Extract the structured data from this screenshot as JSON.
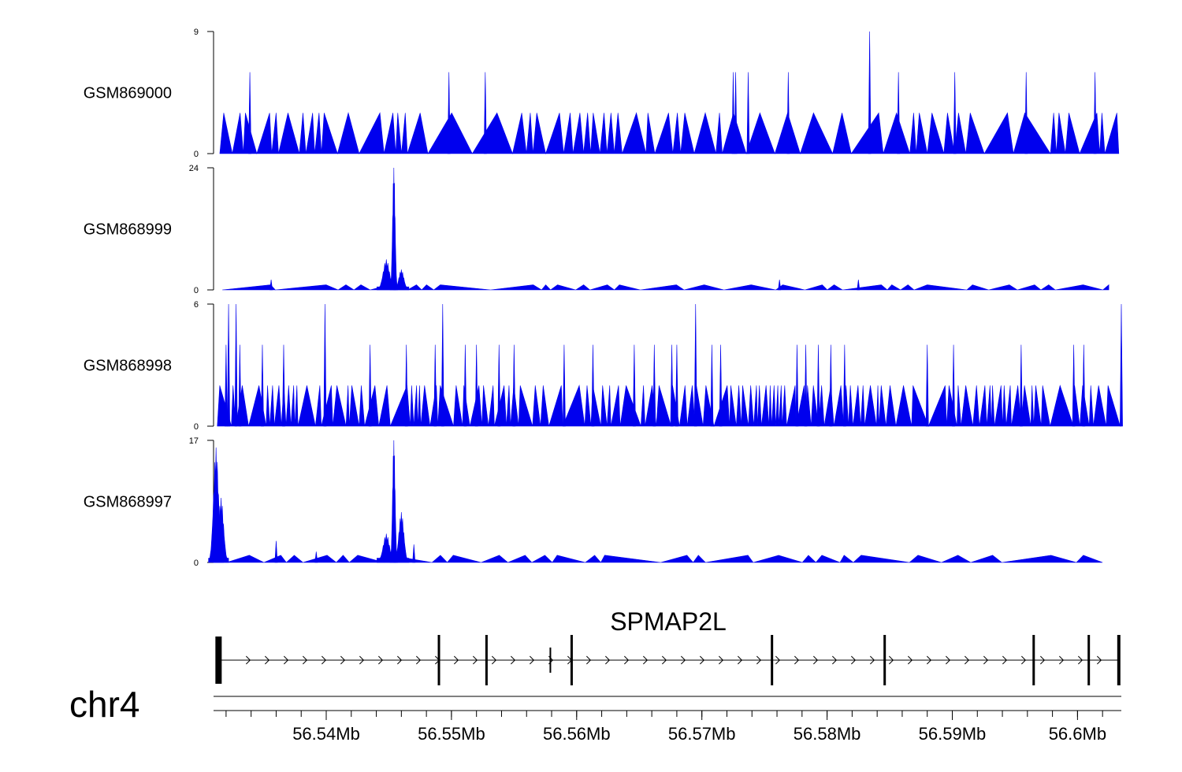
{
  "chart_data": {
    "type": "area",
    "chromosome": "chr4",
    "x_range_mb": [
      56.531,
      56.6035
    ],
    "x_ticks_mb": [
      56.54,
      56.55,
      56.56,
      56.57,
      56.58,
      56.59,
      56.6
    ],
    "x_tick_labels": [
      "56.54Mb",
      "56.55Mb",
      "56.56Mb",
      "56.57Mb",
      "56.58Mb",
      "56.59Mb",
      "56.6Mb"
    ],
    "color": "#0000ee",
    "tracks": [
      {
        "name": "GSM869000",
        "ymin": 0,
        "ymax": 9,
        "ymin_label": "0",
        "ymax_label": "9",
        "x_start": 56.5315,
        "x_end": 56.6033,
        "baseline": 3,
        "gaps": [
          0.6,
          1.5
        ],
        "small_peaks": [
          [
            56.5339,
            6
          ],
          [
            56.5498,
            6
          ],
          [
            56.5527,
            6
          ],
          [
            56.5725,
            6
          ],
          [
            56.5727,
            6
          ],
          [
            56.5737,
            6
          ],
          [
            56.5769,
            6
          ],
          [
            56.5834,
            9
          ],
          [
            56.5857,
            6
          ],
          [
            56.5902,
            6
          ],
          [
            56.5959,
            6
          ],
          [
            56.6014,
            6
          ]
        ],
        "big_peaks": []
      },
      {
        "name": "GSM868999",
        "ymin": 0,
        "ymax": 24,
        "ymin_label": "0",
        "ymax_label": "24",
        "x_start": 56.5317,
        "x_end": 56.6025,
        "baseline": 1,
        "gaps": [
          1.2,
          3.0
        ],
        "small_peaks": [
          [
            56.5356,
            2
          ],
          [
            56.5762,
            2
          ],
          [
            56.5825,
            2
          ]
        ],
        "big_peaks": [
          [
            56.5454,
            24,
            0.0001
          ],
          [
            56.5448,
            6,
            0.00025
          ],
          [
            56.546,
            4,
            0.0002
          ]
        ]
      },
      {
        "name": "GSM868998",
        "ymin": 0,
        "ymax": 6,
        "ymin_label": "0",
        "ymax_label": "6",
        "x_start": 56.5313,
        "x_end": 56.6035,
        "baseline": 2,
        "gaps": [
          0.3,
          0.9
        ],
        "small_peaks": [
          [
            56.5322,
            6
          ],
          [
            56.5328,
            6
          ],
          [
            56.532,
            4
          ],
          [
            56.5331,
            4
          ],
          [
            56.5349,
            4
          ],
          [
            56.5366,
            4
          ],
          [
            56.5399,
            6
          ],
          [
            56.5435,
            4
          ],
          [
            56.5464,
            4
          ],
          [
            56.5487,
            4
          ],
          [
            56.5493,
            6
          ],
          [
            56.5511,
            4
          ],
          [
            56.552,
            4
          ],
          [
            56.5538,
            4
          ],
          [
            56.555,
            4
          ],
          [
            56.559,
            4
          ],
          [
            56.5613,
            4
          ],
          [
            56.5646,
            4
          ],
          [
            56.5662,
            4
          ],
          [
            56.5676,
            4
          ],
          [
            56.568,
            4
          ],
          [
            56.5695,
            6
          ],
          [
            56.5708,
            4
          ],
          [
            56.5715,
            4
          ],
          [
            56.5776,
            4
          ],
          [
            56.5783,
            4
          ],
          [
            56.5793,
            4
          ],
          [
            56.5803,
            4
          ],
          [
            56.5814,
            4
          ],
          [
            56.588,
            4
          ],
          [
            56.5901,
            4
          ],
          [
            56.5955,
            4
          ],
          [
            56.5997,
            4
          ],
          [
            56.6005,
            4
          ],
          [
            56.6035,
            6
          ]
        ],
        "big_peaks": []
      },
      {
        "name": "GSM868997",
        "ymin": 0,
        "ymax": 17,
        "ymin_label": "0",
        "ymax_label": "17",
        "x_start": 56.531,
        "x_end": 56.602,
        "baseline": 1,
        "gaps": [
          1.2,
          3.0
        ],
        "small_peaks": [
          [
            56.536,
            3
          ],
          [
            56.5392,
            1.5
          ],
          [
            56.547,
            2.5
          ]
        ],
        "big_peaks": [
          [
            56.5312,
            16,
            0.0002
          ],
          [
            56.5316,
            9,
            0.0002
          ],
          [
            56.5454,
            17,
            0.0001
          ],
          [
            56.5448,
            4,
            0.00025
          ],
          [
            56.546,
            7,
            0.0002
          ]
        ]
      }
    ],
    "gene": {
      "name": "SPMAP2L",
      "start_mb": 56.5314,
      "end_mb": 56.6034,
      "strand": "+",
      "exons_mb": [
        56.5314,
        56.549,
        56.5528,
        56.5579,
        56.5596,
        56.5756,
        56.5846,
        56.5965,
        56.6009,
        56.6033
      ],
      "thin_exons_mb": [
        56.5579
      ]
    }
  }
}
